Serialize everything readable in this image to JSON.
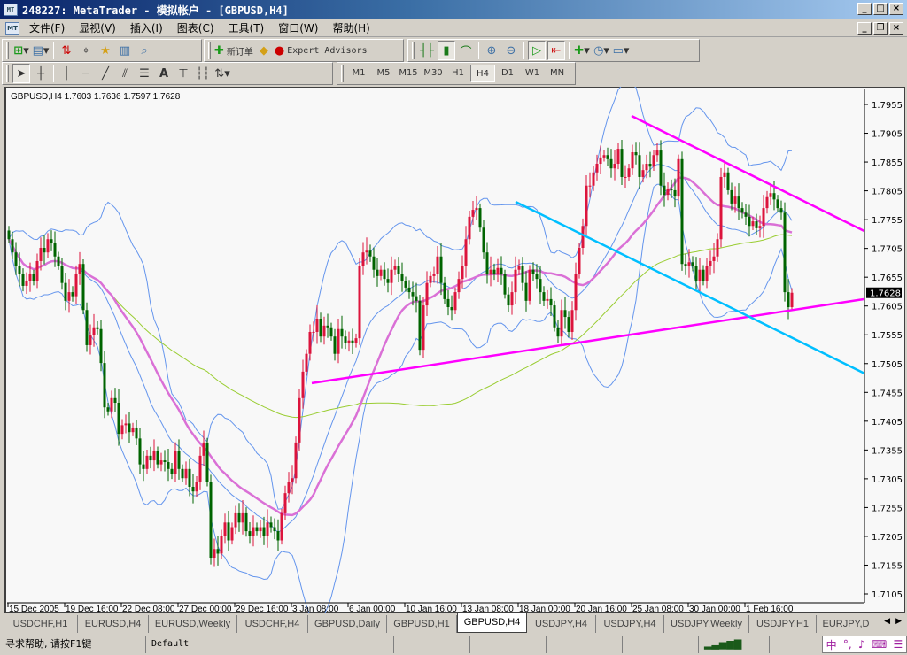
{
  "window": {
    "title": "248227: MetaTrader - 模拟帐户 - [GBPUSD,H4]",
    "icon": "metatrader-app-icon",
    "minimize": "_",
    "maximize": "□",
    "close": "×",
    "restore": "❐"
  },
  "menu": {
    "items": [
      "文件(F)",
      "显视(V)",
      "插入(I)",
      "图表(C)",
      "工具(T)",
      "窗口(W)",
      "帮助(H)"
    ]
  },
  "toolbar1": {
    "new_order": "新订单",
    "expert_advisors": "Expert Advisors"
  },
  "timeframes": {
    "items": [
      "M1",
      "M5",
      "M15",
      "M30",
      "H1",
      "H4",
      "D1",
      "W1",
      "MN"
    ],
    "selected": "H4"
  },
  "chart": {
    "header": "GBPUSD,H4  1.7603 1.7636 1.7597 1.7628",
    "current_price": "1.7628"
  },
  "chart_data": {
    "type": "candlestick",
    "symbol": "GBPUSD",
    "timeframe": "H4",
    "last_bar": {
      "open": 1.7603,
      "high": 1.7636,
      "low": 1.7597,
      "close": 1.7628
    },
    "ylim": [
      1.7105,
      1.7955
    ],
    "y_ticks": [
      "1.7955",
      "1.7905",
      "1.7855",
      "1.7805",
      "1.7755",
      "1.7705",
      "1.7655",
      "1.7605",
      "1.7555",
      "1.7505",
      "1.7455",
      "1.7405",
      "1.7355",
      "1.7305",
      "1.7255",
      "1.7205",
      "1.7155",
      "1.7105"
    ],
    "x_ticks": [
      {
        "bar": 0,
        "label": "15 Dec 2005"
      },
      {
        "bar": 16,
        "label": "19 Dec 16:00"
      },
      {
        "bar": 32,
        "label": "22 Dec 08:00"
      },
      {
        "bar": 48,
        "label": "27 Dec 00:00"
      },
      {
        "bar": 64,
        "label": "29 Dec 16:00"
      },
      {
        "bar": 80,
        "label": "3 Jan 08:00"
      },
      {
        "bar": 96,
        "label": "6 Jan 00:00"
      },
      {
        "bar": 112,
        "label": "10 Jan 16:00"
      },
      {
        "bar": 128,
        "label": "13 Jan 08:00"
      },
      {
        "bar": 144,
        "label": "18 Jan 00:00"
      },
      {
        "bar": 160,
        "label": "20 Jan 16:00"
      },
      {
        "bar": 176,
        "label": "25 Jan 08:00"
      },
      {
        "bar": 192,
        "label": "30 Jan 00:00"
      },
      {
        "bar": 208,
        "label": "1 Feb 16:00"
      }
    ],
    "closes": [
      1.7721,
      1.7698,
      1.7675,
      1.766,
      1.764,
      1.7648,
      1.766,
      1.7648,
      1.7683,
      1.7706,
      1.7698,
      1.7721,
      1.7714,
      1.7691,
      1.7675,
      1.7645,
      1.7614,
      1.7629,
      1.7622,
      1.766,
      1.7678,
      1.7598,
      1.7537,
      1.7555,
      1.7568,
      1.7565,
      1.7506,
      1.7429,
      1.7422,
      1.7445,
      1.7437,
      1.7383,
      1.7398,
      1.7401,
      1.7386,
      1.7394,
      1.7375,
      1.733,
      1.7322,
      1.7345,
      1.7337,
      1.7353,
      1.733,
      1.7337,
      1.7334,
      1.7322,
      1.7314,
      1.7353,
      1.7322,
      1.7306,
      1.7322,
      1.7291,
      1.7283,
      1.7299,
      1.7345,
      1.7368,
      1.7299,
      1.7168,
      1.7183,
      1.7175,
      1.7206,
      1.7229,
      1.7198,
      1.7221,
      1.7245,
      1.7229,
      1.7245,
      1.7214,
      1.7206,
      1.7221,
      1.7214,
      1.7221,
      1.7206,
      1.7229,
      1.7221,
      1.7214,
      1.7198,
      1.7245,
      1.728,
      1.7299,
      1.7306,
      1.7368,
      1.7445,
      1.7491,
      1.7522,
      1.756,
      1.756,
      1.7583,
      1.7552,
      1.7571,
      1.7568,
      1.7552,
      1.7522,
      1.7565,
      1.7552,
      1.754,
      1.7545,
      1.754,
      1.7549,
      1.7675,
      1.7698,
      1.7701,
      1.7691,
      1.7668,
      1.7657,
      1.7668,
      1.7652,
      1.7645,
      1.7668,
      1.7675,
      1.766,
      1.7648,
      1.7637,
      1.7629,
      1.7622,
      1.7614,
      1.7529,
      1.7606,
      1.7645,
      1.7657,
      1.766,
      1.7691,
      1.7645,
      1.7617,
      1.7603,
      1.7598,
      1.7629,
      1.7652,
      1.7675,
      1.7721,
      1.776,
      1.7772,
      1.7775,
      1.7741,
      1.7698,
      1.766,
      1.7668,
      1.766,
      1.7671,
      1.766,
      1.7625,
      1.7606,
      1.7629,
      1.7668,
      1.7675,
      1.7645,
      1.7614,
      1.7668,
      1.766,
      1.7652,
      1.7629,
      1.7614,
      1.7617,
      1.7606,
      1.7568,
      1.7552,
      1.7598,
      1.7586,
      1.756,
      1.7598,
      1.766,
      1.7706,
      1.7744,
      1.7814,
      1.7814,
      1.7837,
      1.7852,
      1.7863,
      1.7867,
      1.786,
      1.7844,
      1.7852,
      1.7878,
      1.7829,
      1.7829,
      1.7844,
      1.7872,
      1.7867,
      1.7829,
      1.7841,
      1.7852,
      1.7847,
      1.7867,
      1.7875,
      1.7814,
      1.7798,
      1.7809,
      1.7806,
      1.7795,
      1.786,
      1.7678,
      1.7675,
      1.7681,
      1.7675,
      1.7648,
      1.7668,
      1.7648,
      1.7675,
      1.7683,
      1.7691,
      1.7721,
      1.7829,
      1.7837,
      1.7806,
      1.7783,
      1.7795,
      1.7775,
      1.7767,
      1.776,
      1.7744,
      1.7752,
      1.774,
      1.7744,
      1.7775,
      1.7794,
      1.7801,
      1.779,
      1.7775,
      1.7767,
      1.7629,
      1.7603,
      1.7628
    ],
    "trendlines": [
      {
        "color": "#FF00FF",
        "from": {
          "bar": 85.5,
          "price": 1.7471
        },
        "to": {
          "bar": 241.5,
          "price": 1.7617
        }
      },
      {
        "color": "#FF00FF",
        "from": {
          "bar": 175.75,
          "price": 1.7935
        },
        "to": {
          "bar": 241.5,
          "price": 1.7735
        }
      },
      {
        "color": "#00BFFF",
        "from": {
          "bar": 143,
          "price": 1.7786
        },
        "to": {
          "bar": 241.5,
          "price": 1.7488
        }
      }
    ],
    "colors": {
      "bull": "#DC143C",
      "bear": "#006400",
      "bands": "#6495ED",
      "ma_fast": "#DA70D6",
      "ma_slow": "#9ACD32",
      "background": "#F8F8F8"
    }
  },
  "tabs": {
    "items": [
      "USDCHF,H1",
      "EURUSD,H4",
      "EURUSD,Weekly",
      "USDCHF,H4",
      "GBPUSD,Daily",
      "GBPUSD,H1",
      "GBPUSD,H4",
      "USDJPY,H4",
      "USDJPY,H4",
      "USDJPY,Weekly",
      "USDJPY,H1",
      "EURJPY,D"
    ],
    "active": "GBPUSD,H4"
  },
  "status": {
    "help": "寻求帮助, 请按F1键",
    "profile": "Default",
    "ime": [
      "中",
      "°,",
      "♪",
      "⌨",
      "☰"
    ]
  }
}
